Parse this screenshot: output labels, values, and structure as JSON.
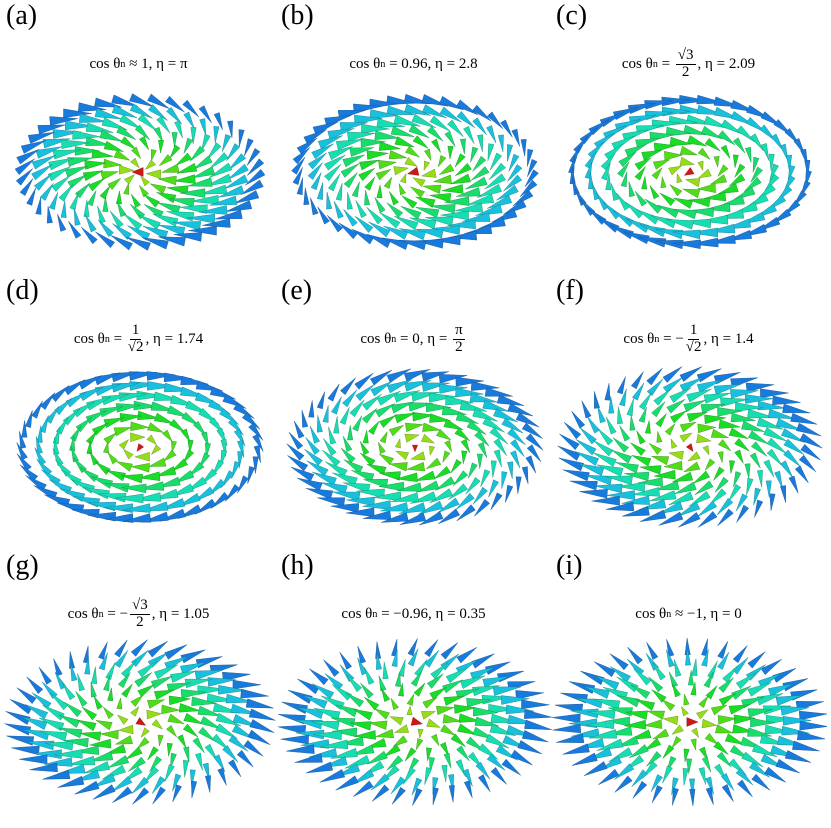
{
  "panels": [
    {
      "label": "(a)",
      "caption": {
        "lhs": "cos θ",
        "sub": "n",
        "pre": " ≈ 1, η = π"
      }
    },
    {
      "label": "(b)",
      "caption": {
        "lhs": "cos θ",
        "sub": "n",
        "pre": " = 0.96, η = 2.8"
      }
    },
    {
      "label": "(c)",
      "caption": {
        "lhs": "cos θ",
        "sub": "n",
        "pre": " = ",
        "num": "√3",
        "den": "2",
        "post": ", η = 2.09"
      }
    },
    {
      "label": "(d)",
      "caption": {
        "lhs": "cos θ",
        "sub": "n",
        "pre": " = ",
        "num": "1",
        "den": "√2",
        "post": ", η = 1.74"
      }
    },
    {
      "label": "(e)",
      "caption": {
        "lhs": "cos θ",
        "sub": "n",
        "pre": " = 0, η = ",
        "num": "π",
        "den": "2"
      }
    },
    {
      "label": "(f)",
      "caption": {
        "lhs": "cos θ",
        "sub": "n",
        "pre": " = −",
        "num": "1",
        "den": "√2",
        "post": ", η = 1.4"
      }
    },
    {
      "label": "(g)",
      "caption": {
        "lhs": "cos θ",
        "sub": "n",
        "pre": " = −",
        "num": "√3",
        "den": "2",
        "post": ", η = 1.05"
      }
    },
    {
      "label": "(h)",
      "caption": {
        "lhs": "cos θ",
        "sub": "n",
        "pre": " = −0.96, η = 0.35"
      }
    },
    {
      "label": "(i)",
      "caption": {
        "lhs": "cos θ",
        "sub": "n",
        "pre": " ≈ −1, η = 0"
      }
    }
  ]
}
